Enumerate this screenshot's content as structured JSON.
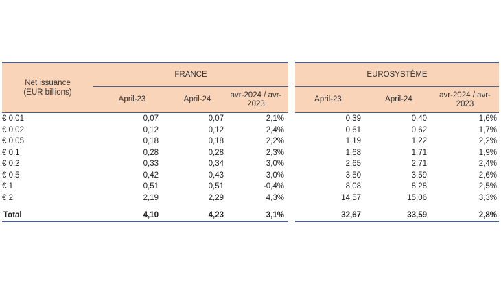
{
  "header": {
    "net_issuance_label": "Net issuance\n(EUR billions)",
    "france": "FRANCE",
    "eurosysteme": "EUROSYSTÈME",
    "col_april23": "April-23",
    "col_april24": "April-24",
    "col_change": "avr-2024 / avr-2023"
  },
  "rows": [
    {
      "denom": "€ 0.01",
      "fr_a23": "0,07",
      "fr_a24": "0,07",
      "fr_chg": "2,1%",
      "eu_a23": "0,39",
      "eu_a24": "0,40",
      "eu_chg": "1,6%"
    },
    {
      "denom": "€ 0.02",
      "fr_a23": "0,12",
      "fr_a24": "0,12",
      "fr_chg": "2,4%",
      "eu_a23": "0,61",
      "eu_a24": "0,62",
      "eu_chg": "1,7%"
    },
    {
      "denom": "€ 0.05",
      "fr_a23": "0,18",
      "fr_a24": "0,18",
      "fr_chg": "2,2%",
      "eu_a23": "1,19",
      "eu_a24": "1,22",
      "eu_chg": "2,2%"
    },
    {
      "denom": "€ 0.1",
      "fr_a23": "0,28",
      "fr_a24": "0,28",
      "fr_chg": "2,3%",
      "eu_a23": "1,68",
      "eu_a24": "1,71",
      "eu_chg": "1,9%"
    },
    {
      "denom": "€ 0.2",
      "fr_a23": "0,33",
      "fr_a24": "0,34",
      "fr_chg": "3,0%",
      "eu_a23": "2,65",
      "eu_a24": "2,71",
      "eu_chg": "2,4%"
    },
    {
      "denom": "€ 0.5",
      "fr_a23": "0,42",
      "fr_a24": "0,43",
      "fr_chg": "3,0%",
      "eu_a23": "3,50",
      "eu_a24": "3,59",
      "eu_chg": "2,6%"
    },
    {
      "denom": "€ 1",
      "fr_a23": "0,51",
      "fr_a24": "0,51",
      "fr_chg": "-0,4%",
      "eu_a23": "8,08",
      "eu_a24": "8,28",
      "eu_chg": "2,5%"
    },
    {
      "denom": "€ 2",
      "fr_a23": "2,19",
      "fr_a24": "2,29",
      "fr_chg": "4,3%",
      "eu_a23": "14,57",
      "eu_a24": "15,06",
      "eu_chg": "3,3%"
    }
  ],
  "total": {
    "label": "Total",
    "fr_a23": "4,10",
    "fr_a24": "4,23",
    "fr_chg": "3,1%",
    "eu_a23": "32,67",
    "eu_a24": "33,59",
    "eu_chg": "2,8%"
  },
  "colors": {
    "header_bg": "#fad4b8",
    "rule": "#4a5d8a"
  }
}
